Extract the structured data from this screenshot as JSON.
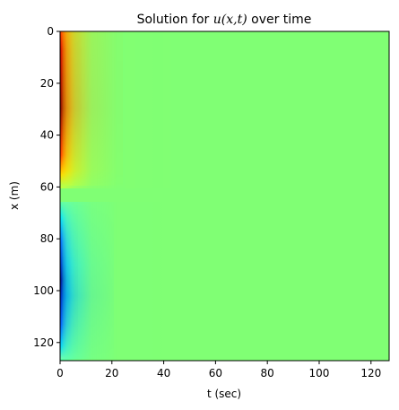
{
  "chart_data": {
    "type": "heatmap",
    "title_prefix": "Solution for ",
    "title_math": "u(x,t)",
    "title_suffix": " over time",
    "xlabel": "t (sec)",
    "ylabel": "x (m)",
    "x_ticks": [
      0,
      20,
      40,
      60,
      80,
      100,
      120
    ],
    "y_ticks": [
      0,
      20,
      40,
      60,
      80,
      100,
      120
    ],
    "xlim": [
      0,
      127
    ],
    "ylim": [
      127,
      0
    ],
    "colormap": "jet",
    "background_value_color": "#80ff74",
    "features": [
      {
        "name": "positive lobe",
        "x_range": [
          0,
          60
        ],
        "peak_x": 30,
        "peak_t": 0,
        "peak_color": "#800000"
      },
      {
        "name": "negative lobe",
        "x_range": [
          66,
          127
        ],
        "peak_x": 98,
        "peak_t": 0,
        "peak_color": "#00008f"
      }
    ],
    "grid": false
  }
}
